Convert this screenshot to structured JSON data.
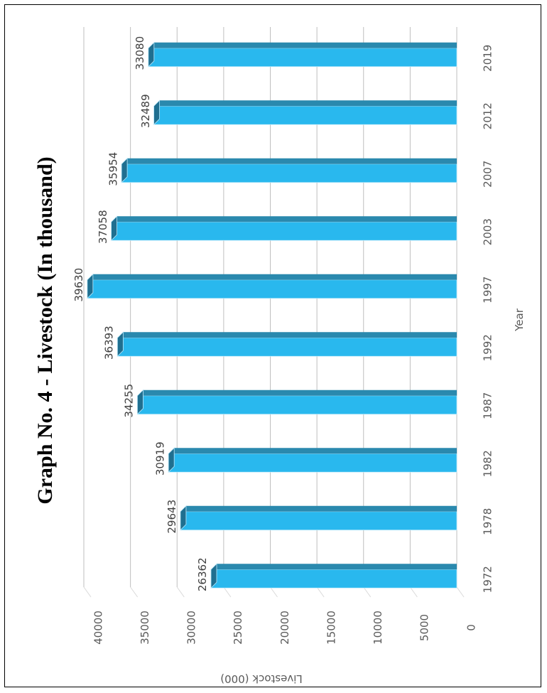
{
  "chart_data": {
    "type": "bar",
    "title": "Graph No. 4 - Livestock (In thousand)",
    "xlabel": "Year",
    "ylabel": "Livestock (000)",
    "categories": [
      "1972",
      "1978",
      "1982",
      "1987",
      "1992",
      "1997",
      "2003",
      "2007",
      "2012",
      "2019"
    ],
    "values": [
      26362,
      29643,
      30919,
      34255,
      36393,
      39630,
      37058,
      35954,
      32489,
      33080
    ],
    "value_labels": [
      "26362",
      "29643",
      "30919",
      "34255",
      "36393",
      "39630",
      "37058",
      "35954",
      "32489",
      "33080"
    ],
    "yticks": [
      0,
      5000,
      10000,
      15000,
      20000,
      25000,
      30000,
      35000,
      40000
    ],
    "ytick_labels": [
      "0",
      "5000",
      "10000",
      "15000",
      "20000",
      "25000",
      "30000",
      "35000",
      "40000"
    ],
    "ylim": [
      0,
      40000
    ],
    "grid": true,
    "orientation": "rotated-90",
    "colors": {
      "bar_front": "#29B8EE",
      "bar_top": "#2A89AE",
      "bar_side": "#1F6F90",
      "grid": "#BFBFBF"
    }
  }
}
